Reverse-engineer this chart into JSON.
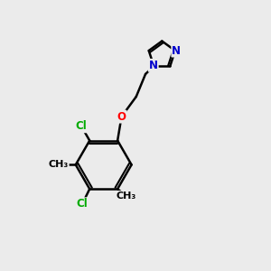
{
  "background_color": "#ebebeb",
  "bond_color": "#000000",
  "bond_width": 1.8,
  "atom_colors": {
    "C": "#000000",
    "N": "#0000cc",
    "O": "#ff0000",
    "Cl": "#00aa00"
  },
  "font_size": 8.5,
  "fig_width": 3.0,
  "fig_height": 3.0,
  "xlim": [
    0,
    10
  ],
  "ylim": [
    0,
    10
  ]
}
